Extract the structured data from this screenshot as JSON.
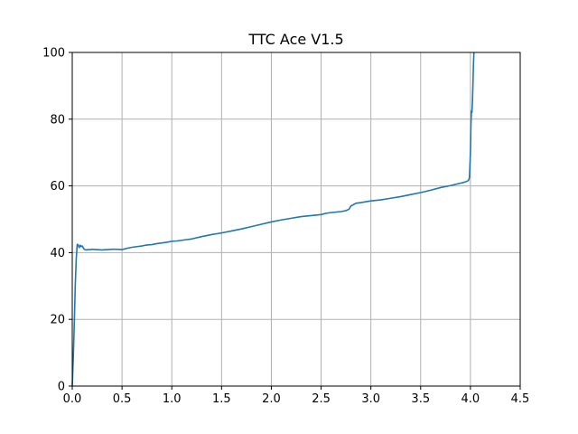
{
  "chart_data": {
    "type": "line",
    "title": "TTC Ace V1.5",
    "xlabel": "",
    "ylabel": "",
    "xlim": [
      0,
      4.5
    ],
    "ylim": [
      0,
      100
    ],
    "xticks": [
      "0.0",
      "0.5",
      "1.0",
      "1.5",
      "2.0",
      "2.5",
      "3.0",
      "3.5",
      "4.0",
      "4.5"
    ],
    "yticks": [
      "0",
      "20",
      "40",
      "60",
      "80",
      "100"
    ],
    "grid": true,
    "legend": "none",
    "series": [
      {
        "color": "#1f77b4",
        "x": [
          0.0,
          0.01,
          0.02,
          0.03,
          0.04,
          0.05,
          0.06,
          0.07,
          0.08,
          0.09,
          0.1,
          0.12,
          0.14,
          0.16,
          0.18,
          0.2,
          0.25,
          0.3,
          0.35,
          0.4,
          0.45,
          0.5,
          0.55,
          0.6,
          0.65,
          0.7,
          0.75,
          0.8,
          0.85,
          0.9,
          0.95,
          1.0,
          1.05,
          1.1,
          1.15,
          1.2,
          1.3,
          1.4,
          1.5,
          1.6,
          1.7,
          1.8,
          1.9,
          2.0,
          2.1,
          2.2,
          2.3,
          2.4,
          2.5,
          2.55,
          2.6,
          2.7,
          2.75,
          2.78,
          2.8,
          2.85,
          2.9,
          3.0,
          3.1,
          3.2,
          3.3,
          3.4,
          3.5,
          3.6,
          3.7,
          3.8,
          3.9,
          3.95,
          3.98,
          3.99,
          4.0,
          4.005,
          4.01,
          4.015,
          4.02,
          4.025,
          4.03,
          4.035
        ],
        "y": [
          0,
          8,
          18,
          30,
          38,
          42.5,
          42.3,
          41.5,
          42.2,
          41.8,
          42.0,
          41.0,
          40.8,
          40.9,
          40.9,
          41.0,
          40.9,
          40.8,
          40.9,
          41.0,
          41.0,
          40.9,
          41.3,
          41.6,
          41.8,
          42.0,
          42.3,
          42.4,
          42.7,
          42.9,
          43.1,
          43.4,
          43.5,
          43.7,
          43.9,
          44.1,
          44.8,
          45.4,
          45.9,
          46.5,
          47.1,
          47.8,
          48.5,
          49.2,
          49.8,
          50.3,
          50.8,
          51.1,
          51.4,
          51.8,
          52.0,
          52.3,
          52.6,
          53.0,
          54.0,
          54.8,
          55.0,
          55.5,
          55.8,
          56.3,
          56.8,
          57.4,
          58.0,
          58.7,
          59.5,
          60.1,
          60.8,
          61.2,
          61.6,
          62.5,
          70.0,
          78.0,
          82.5,
          82.0,
          85.0,
          90.0,
          96.0,
          100
        ]
      }
    ]
  }
}
